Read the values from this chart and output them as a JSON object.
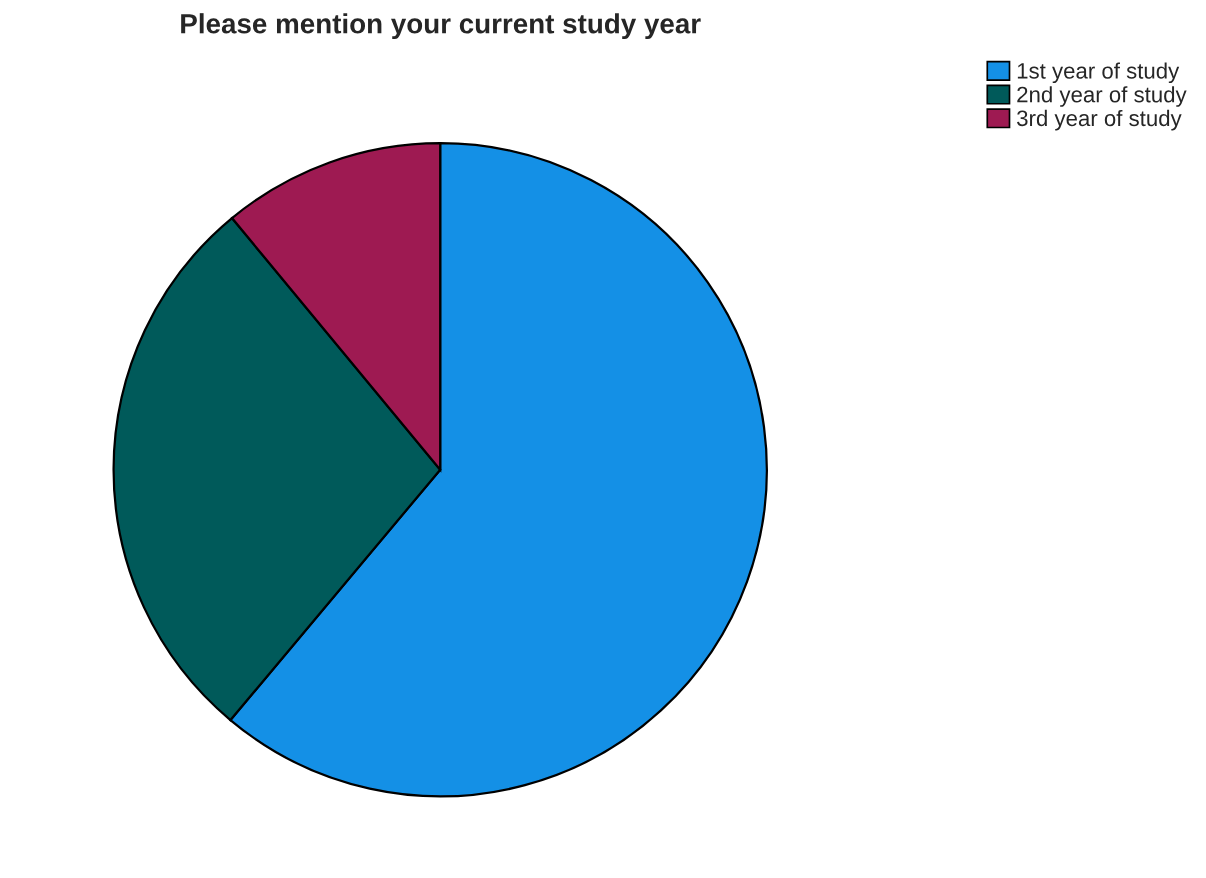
{
  "chart_data": {
    "type": "pie",
    "title": "Please mention your current study year",
    "categories": [
      "1st year of study",
      "2nd year of study",
      "3rd year of study"
    ],
    "values": [
      61.1,
      27.9,
      11.0
    ],
    "colors": [
      "#1490e6",
      "#005a5a",
      "#9e1a52"
    ],
    "legend": "top right"
  }
}
